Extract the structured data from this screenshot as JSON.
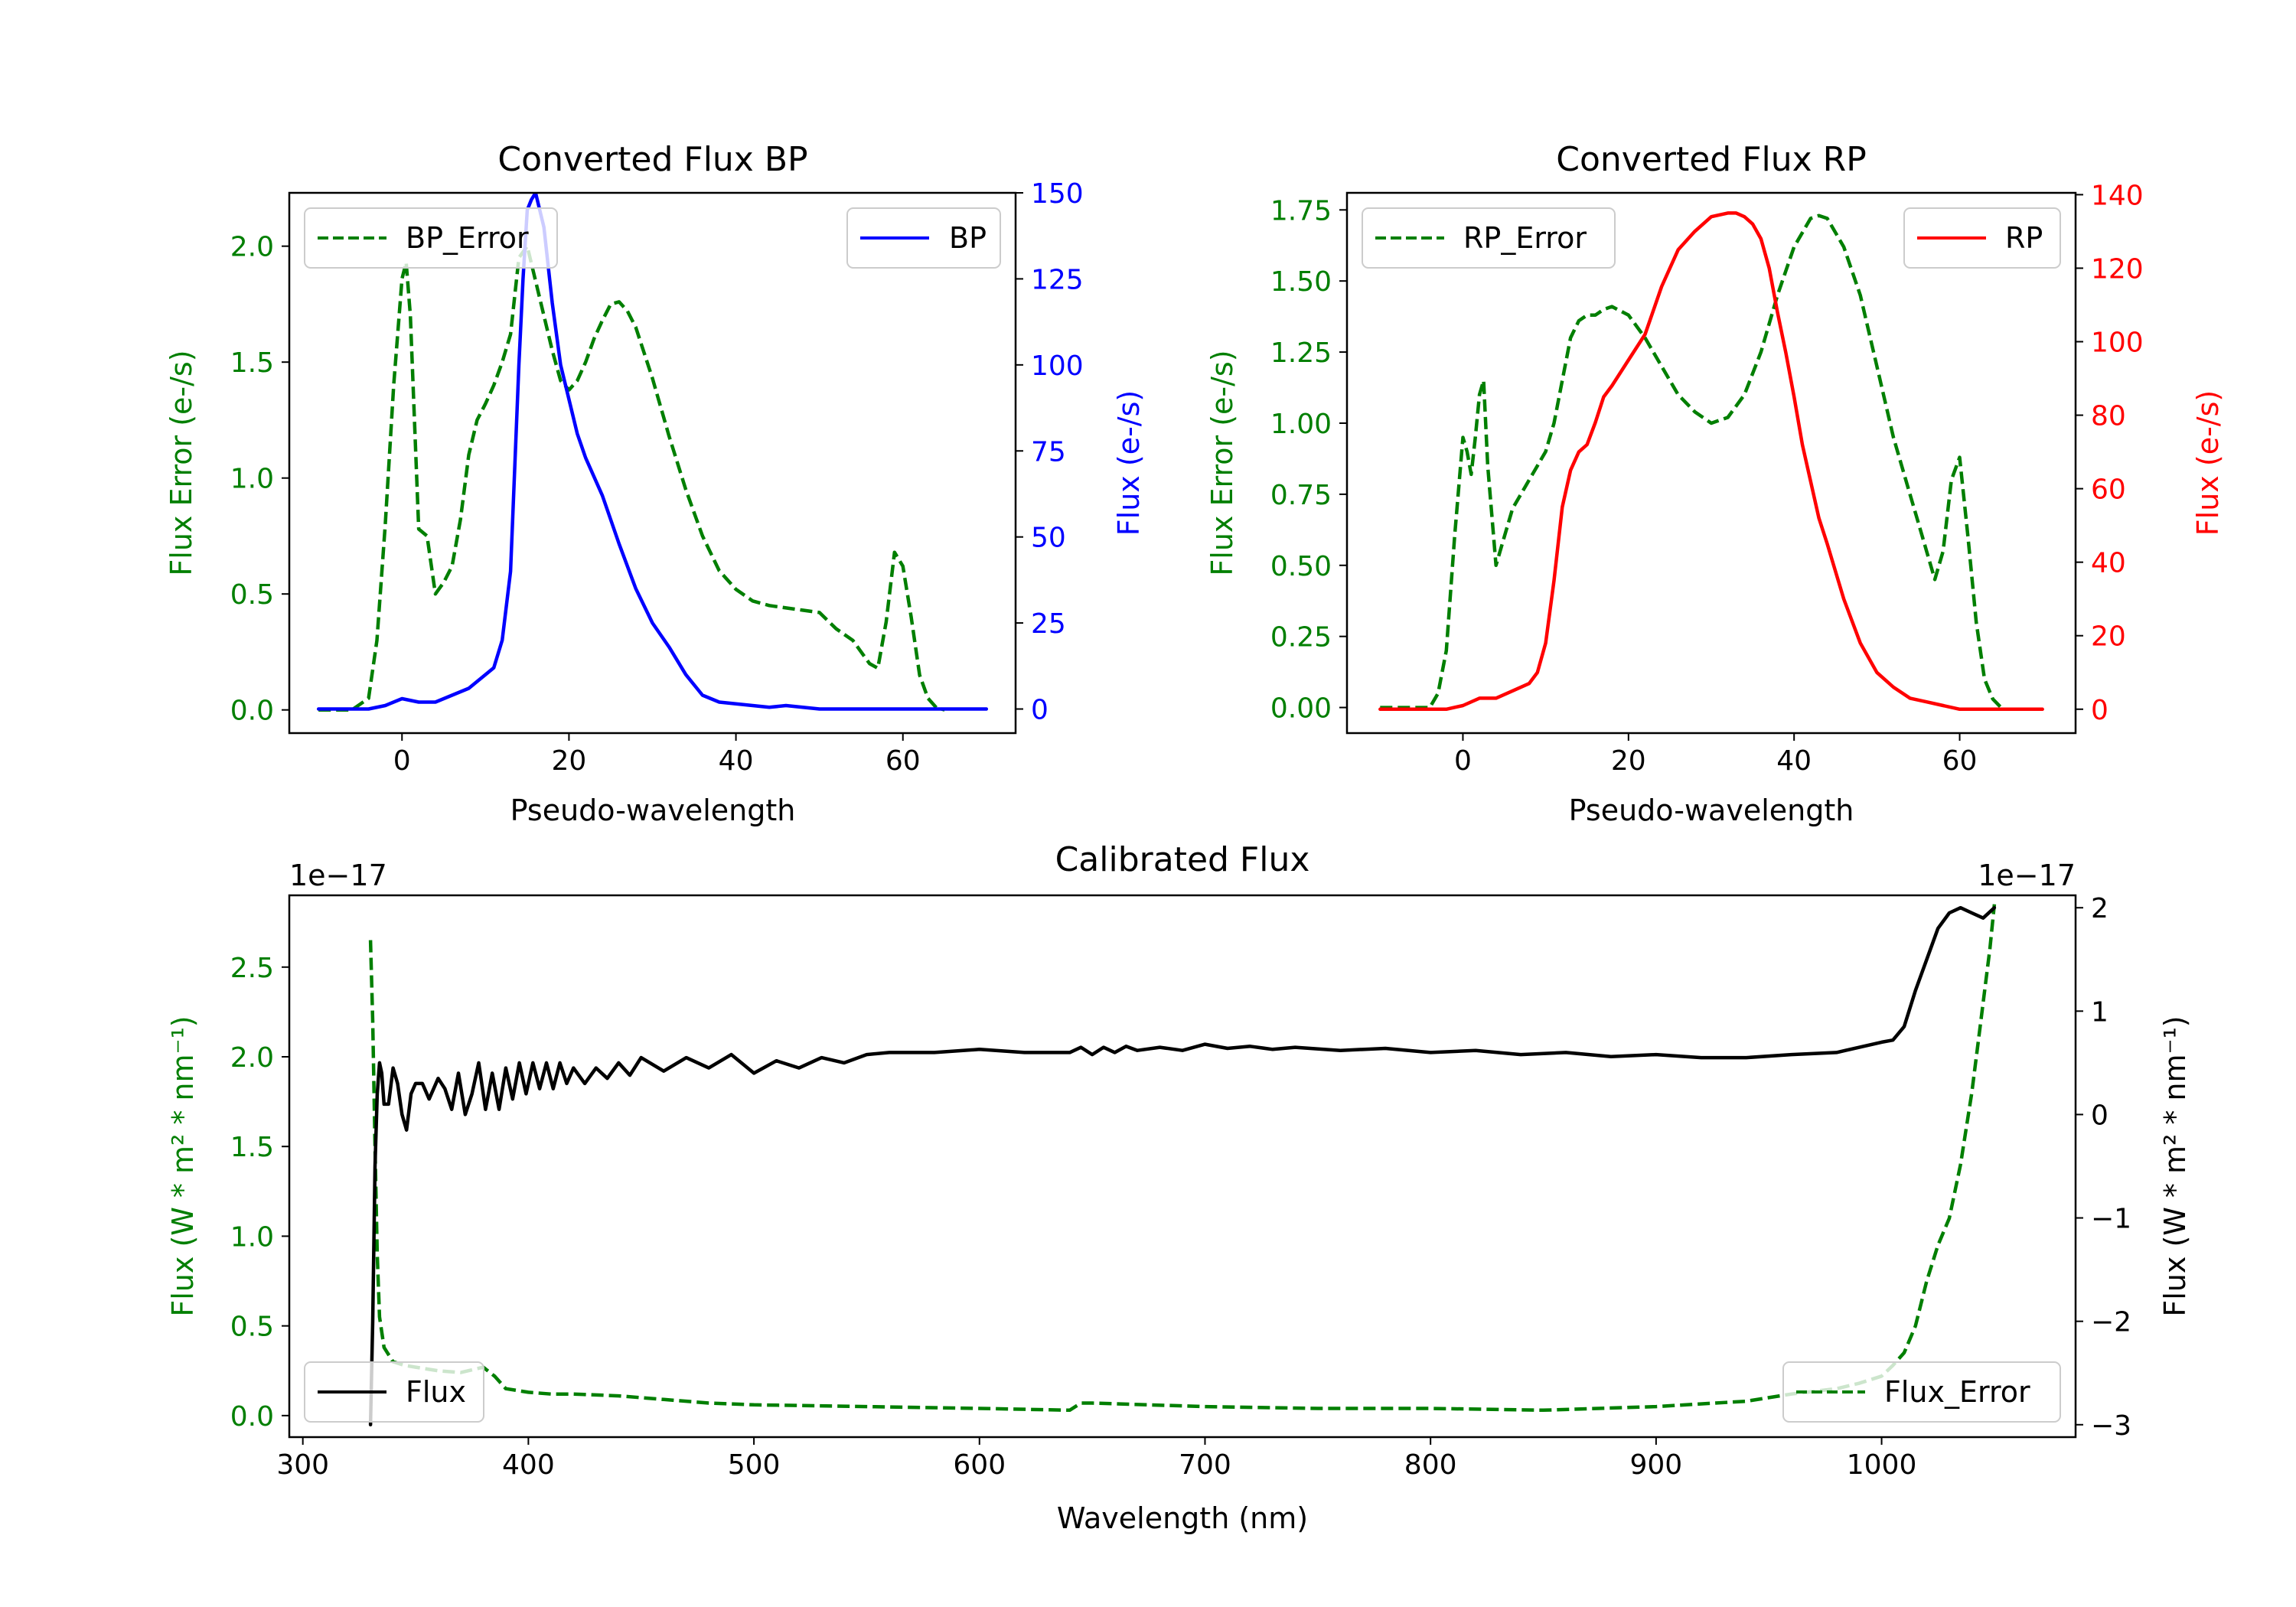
{
  "colors": {
    "green": "#007f00",
    "blue": "#0000ff",
    "red": "#ff0000",
    "black": "#000000",
    "axis": "#000000"
  },
  "chart_data": [
    {
      "id": "bp",
      "type": "line",
      "title": "Converted Flux BP",
      "xlabel": "Pseudo-wavelength",
      "ylabel_left": "Flux Error (e-/s)",
      "ylabel_right": "Flux (e-/s)",
      "xlim": [
        -13.5,
        73.5
      ],
      "ylim_left": [
        -0.1,
        2.23
      ],
      "ylim_right": [
        -7,
        150
      ],
      "xticks": [
        0,
        20,
        40,
        60
      ],
      "xtick_labels": [
        "0",
        "20",
        "40",
        "60"
      ],
      "yticks_left": [
        0.0,
        0.5,
        1.0,
        1.5,
        2.0
      ],
      "ytick_labels_left": [
        "0.0",
        "0.5",
        "1.0",
        "1.5",
        "2.0"
      ],
      "yticks_right": [
        0,
        25,
        50,
        75,
        100,
        125,
        150
      ],
      "ytick_labels_right": [
        "0",
        "25",
        "50",
        "75",
        "100",
        "125",
        "150"
      ],
      "legend_left": "BP_Error",
      "legend_right": "BP",
      "series": [
        {
          "name": "BP_Error",
          "axis": "left",
          "color": "green",
          "style": "dashed",
          "x": [
            -10,
            -6,
            -4,
            -3,
            -2,
            -1,
            0,
            0.5,
            1,
            2,
            3,
            4,
            5,
            6,
            7,
            8,
            9,
            10,
            11,
            12,
            13,
            14,
            15,
            16,
            17,
            18,
            19,
            20,
            21,
            22,
            23,
            24,
            25,
            26,
            27,
            28,
            30,
            32,
            34,
            36,
            38,
            40,
            42,
            44,
            46,
            48,
            50,
            52,
            54,
            56,
            57,
            58,
            59,
            60,
            61,
            62,
            63,
            64,
            65
          ],
          "y": [
            0.0,
            0.0,
            0.05,
            0.3,
            0.8,
            1.4,
            1.86,
            1.93,
            1.7,
            0.78,
            0.75,
            0.5,
            0.55,
            0.62,
            0.82,
            1.1,
            1.25,
            1.32,
            1.4,
            1.5,
            1.62,
            1.95,
            2.0,
            1.85,
            1.7,
            1.55,
            1.42,
            1.38,
            1.42,
            1.5,
            1.6,
            1.68,
            1.75,
            1.76,
            1.72,
            1.65,
            1.43,
            1.18,
            0.95,
            0.75,
            0.6,
            0.52,
            0.47,
            0.45,
            0.44,
            0.43,
            0.42,
            0.35,
            0.3,
            0.2,
            0.18,
            0.38,
            0.68,
            0.62,
            0.4,
            0.15,
            0.05,
            0.01,
            0.0
          ]
        },
        {
          "name": "BP",
          "axis": "right",
          "color": "blue",
          "style": "solid",
          "x": [
            -10,
            -4,
            -2,
            0,
            2,
            4,
            6,
            8,
            10,
            11,
            12,
            13,
            14,
            14.5,
            15,
            15.5,
            16,
            17,
            18,
            19,
            20,
            21,
            22,
            24,
            26,
            28,
            30,
            32,
            34,
            36,
            38,
            40,
            42,
            44,
            46,
            48,
            50,
            52,
            56,
            60,
            64,
            70
          ],
          "y": [
            0,
            0,
            1,
            3,
            2,
            2,
            4,
            6,
            10,
            12,
            20,
            40,
            100,
            125,
            145,
            148,
            150,
            140,
            118,
            100,
            90,
            80,
            73,
            62,
            48,
            35,
            25,
            18,
            10,
            4,
            2,
            1.5,
            1,
            0.5,
            1,
            0.5,
            0,
            0,
            0,
            0,
            0,
            0
          ]
        }
      ]
    },
    {
      "id": "rp",
      "type": "line",
      "title": "Converted Flux RP",
      "xlabel": "Pseudo-wavelength",
      "ylabel_left": "Flux Error (e-/s)",
      "ylabel_right": "Flux (e-/s)",
      "xlim": [
        -14,
        74
      ],
      "ylim_left": [
        -0.09,
        1.81
      ],
      "ylim_right": [
        -6.5,
        140.5
      ],
      "xticks": [
        0,
        20,
        40,
        60
      ],
      "xtick_labels": [
        "0",
        "20",
        "40",
        "60"
      ],
      "yticks_left": [
        0.0,
        0.25,
        0.5,
        0.75,
        1.0,
        1.25,
        1.5,
        1.75
      ],
      "ytick_labels_left": [
        "0.00",
        "0.25",
        "0.50",
        "0.75",
        "1.00",
        "1.25",
        "1.50",
        "1.75"
      ],
      "yticks_right": [
        0,
        20,
        40,
        60,
        80,
        100,
        120,
        140
      ],
      "ytick_labels_right": [
        "0",
        "20",
        "40",
        "60",
        "80",
        "100",
        "120",
        "140"
      ],
      "legend_left": "RP_Error",
      "legend_right": "RP",
      "series": [
        {
          "name": "RP_Error",
          "axis": "left",
          "color": "green",
          "style": "dashed",
          "x": [
            -10,
            -4,
            -3,
            -2,
            -1,
            0,
            0.5,
            1,
            1.5,
            2,
            2.5,
            3,
            4,
            5,
            6,
            7,
            8,
            9,
            10,
            11,
            12,
            13,
            14,
            15,
            16,
            17,
            18,
            20,
            22,
            24,
            26,
            28,
            30,
            32,
            34,
            36,
            38,
            40,
            42,
            43,
            44,
            46,
            48,
            50,
            52,
            54,
            55,
            56,
            57,
            58,
            59,
            60,
            61,
            62,
            63,
            64,
            65
          ],
          "y": [
            0.0,
            0.0,
            0.05,
            0.2,
            0.6,
            0.95,
            0.9,
            0.82,
            0.95,
            1.1,
            1.15,
            0.85,
            0.5,
            0.6,
            0.7,
            0.75,
            0.8,
            0.85,
            0.9,
            1.0,
            1.15,
            1.3,
            1.36,
            1.38,
            1.38,
            1.4,
            1.41,
            1.38,
            1.3,
            1.2,
            1.1,
            1.04,
            1.0,
            1.02,
            1.1,
            1.25,
            1.45,
            1.62,
            1.72,
            1.73,
            1.72,
            1.62,
            1.45,
            1.2,
            0.95,
            0.75,
            0.65,
            0.55,
            0.45,
            0.55,
            0.8,
            0.88,
            0.6,
            0.3,
            0.1,
            0.03,
            0.0
          ]
        },
        {
          "name": "RP",
          "axis": "right",
          "color": "red",
          "style": "solid",
          "x": [
            -10,
            -2,
            0,
            2,
            4,
            6,
            8,
            9,
            10,
            11,
            12,
            13,
            14,
            15,
            16,
            17,
            18,
            20,
            22,
            24,
            26,
            28,
            30,
            32,
            33,
            34,
            35,
            36,
            37,
            38,
            39,
            40,
            41,
            42,
            43,
            44,
            46,
            48,
            50,
            52,
            54,
            56,
            58,
            60,
            62,
            65,
            70
          ],
          "y": [
            0,
            0,
            1,
            3,
            3,
            5,
            7,
            10,
            18,
            35,
            55,
            65,
            70,
            72,
            78,
            85,
            88,
            95,
            102,
            115,
            125,
            130,
            134,
            135,
            135,
            134,
            132,
            128,
            120,
            108,
            97,
            85,
            72,
            62,
            52,
            45,
            30,
            18,
            10,
            6,
            3,
            2,
            1,
            0,
            0,
            0,
            0
          ]
        }
      ]
    },
    {
      "id": "cal",
      "type": "line",
      "title": "Calibrated Flux",
      "xlabel": "Wavelength (nm)",
      "ylabel_left": "Flux (W * m² * nm⁻¹)",
      "ylabel_right": "Flux (W * m² * nm⁻¹)",
      "offset_left": "1e−17",
      "offset_right": "1e−17",
      "xlim": [
        294,
        1086
      ],
      "ylim_left": [
        -0.12,
        2.9
      ],
      "ylim_right": [
        -3.12,
        2.12
      ],
      "xticks": [
        300,
        400,
        500,
        600,
        700,
        800,
        900,
        1000
      ],
      "xtick_labels": [
        "300",
        "400",
        "500",
        "600",
        "700",
        "800",
        "900",
        "1000"
      ],
      "yticks_left": [
        0.0,
        0.5,
        1.0,
        1.5,
        2.0,
        2.5
      ],
      "ytick_labels_left": [
        "0.0",
        "0.5",
        "1.0",
        "1.5",
        "2.0",
        "2.5"
      ],
      "yticks_right": [
        -3,
        -2,
        -1,
        0,
        1,
        2
      ],
      "ytick_labels_right": [
        "−3",
        "−2",
        "−1",
        "0",
        "1",
        "2"
      ],
      "legend_left": "Flux",
      "legend_right": "Flux_Error",
      "series": [
        {
          "name": "Flux_Error",
          "axis": "left",
          "color": "green",
          "style": "dashed",
          "x": [
            330,
            331,
            332,
            333,
            334,
            336,
            340,
            345,
            350,
            360,
            370,
            380,
            385,
            390,
            400,
            410,
            420,
            440,
            460,
            480,
            500,
            550,
            600,
            640,
            645,
            650,
            700,
            750,
            800,
            850,
            900,
            940,
            960,
            980,
            990,
            1000,
            1005,
            1010,
            1015,
            1020,
            1025,
            1030,
            1035,
            1040,
            1043,
            1046,
            1048,
            1050
          ],
          "y": [
            2.65,
            2.2,
            1.5,
            0.9,
            0.55,
            0.38,
            0.3,
            0.28,
            0.27,
            0.25,
            0.24,
            0.27,
            0.22,
            0.15,
            0.13,
            0.12,
            0.12,
            0.11,
            0.09,
            0.07,
            0.06,
            0.05,
            0.04,
            0.03,
            0.07,
            0.07,
            0.05,
            0.04,
            0.04,
            0.03,
            0.05,
            0.08,
            0.12,
            0.15,
            0.18,
            0.22,
            0.28,
            0.35,
            0.5,
            0.75,
            0.95,
            1.1,
            1.4,
            1.8,
            2.1,
            2.4,
            2.6,
            2.85
          ]
        },
        {
          "name": "Flux",
          "axis": "right",
          "color": "black",
          "style": "solid",
          "x": [
            330,
            331,
            332,
            333,
            334,
            335,
            336,
            338,
            340,
            342,
            344,
            346,
            348,
            350,
            353,
            356,
            360,
            363,
            366,
            369,
            372,
            375,
            378,
            381,
            384,
            387,
            390,
            393,
            396,
            399,
            402,
            405,
            408,
            411,
            414,
            417,
            420,
            425,
            430,
            435,
            440,
            445,
            450,
            460,
            470,
            480,
            490,
            500,
            510,
            520,
            530,
            540,
            550,
            560,
            580,
            600,
            620,
            640,
            645,
            650,
            655,
            660,
            665,
            670,
            680,
            690,
            700,
            710,
            720,
            730,
            740,
            760,
            780,
            800,
            820,
            840,
            860,
            880,
            900,
            920,
            940,
            960,
            980,
            1000,
            1005,
            1010,
            1015,
            1020,
            1025,
            1030,
            1035,
            1040,
            1045,
            1050
          ],
          "y": [
            -3.0,
            -2.0,
            -0.5,
            0.2,
            0.5,
            0.4,
            0.1,
            0.1,
            0.45,
            0.3,
            0.0,
            -0.15,
            0.2,
            0.3,
            0.3,
            0.15,
            0.35,
            0.25,
            0.05,
            0.4,
            0.0,
            0.2,
            0.5,
            0.05,
            0.4,
            0.05,
            0.45,
            0.15,
            0.5,
            0.2,
            0.5,
            0.25,
            0.5,
            0.25,
            0.5,
            0.3,
            0.45,
            0.3,
            0.45,
            0.35,
            0.5,
            0.38,
            0.55,
            0.42,
            0.55,
            0.45,
            0.58,
            0.4,
            0.52,
            0.45,
            0.55,
            0.5,
            0.58,
            0.6,
            0.6,
            0.63,
            0.6,
            0.6,
            0.65,
            0.58,
            0.65,
            0.6,
            0.66,
            0.62,
            0.65,
            0.62,
            0.68,
            0.64,
            0.66,
            0.63,
            0.65,
            0.62,
            0.64,
            0.6,
            0.62,
            0.58,
            0.6,
            0.56,
            0.58,
            0.55,
            0.55,
            0.58,
            0.6,
            0.7,
            0.72,
            0.85,
            1.2,
            1.5,
            1.8,
            1.95,
            2.0,
            1.95,
            1.9,
            2.0
          ]
        }
      ]
    }
  ]
}
